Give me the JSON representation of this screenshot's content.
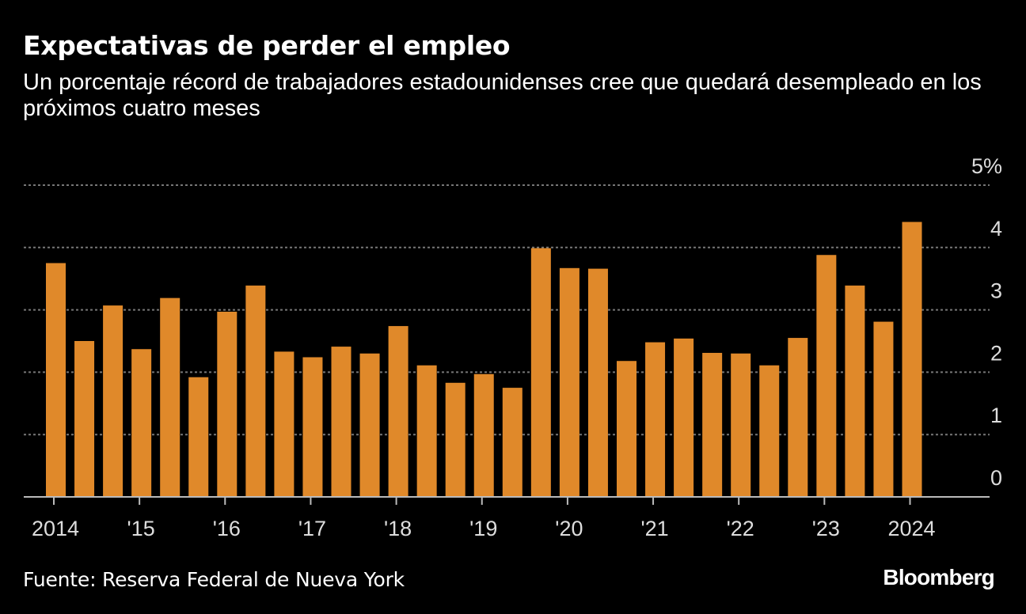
{
  "header": {
    "title": "Expectativas de perder el empleo",
    "subtitle": "Un porcentaje récord de trabajadores estadounidenses cree que quedará desempleado en los próximos cuatro meses"
  },
  "footer": {
    "source": "Fuente: Reserva Federal de Nueva York",
    "brand": "Bloomberg"
  },
  "colors": {
    "bar": "#E0892A",
    "background": "#000000",
    "grid": "#777777",
    "axis": "#bbbbbb"
  },
  "chart_data": {
    "type": "bar",
    "title": "Expectativas de perder el empleo",
    "ylabel": "%",
    "ylim": [
      0,
      5
    ],
    "yticks": [
      0,
      1,
      2,
      3,
      4,
      5
    ],
    "ytick_labels": [
      "0",
      "1",
      "2",
      "3",
      "4",
      "5%"
    ],
    "grid": true,
    "categories": [
      "2014-04",
      "2014-08",
      "2014-12",
      "2015-04",
      "2015-08",
      "2015-12",
      "2016-04",
      "2016-08",
      "2016-12",
      "2017-04",
      "2017-08",
      "2017-12",
      "2018-04",
      "2018-08",
      "2018-12",
      "2019-04",
      "2019-08",
      "2019-12",
      "2020-04",
      "2020-08",
      "2020-12",
      "2021-04",
      "2021-08",
      "2021-12",
      "2022-04",
      "2022-08",
      "2022-12",
      "2023-04",
      "2023-08",
      "2023-12",
      "2024-04"
    ],
    "values": [
      3.75,
      2.5,
      3.07,
      2.37,
      3.19,
      1.92,
      2.97,
      3.39,
      2.33,
      2.24,
      2.41,
      2.3,
      2.74,
      2.11,
      1.83,
      1.97,
      1.75,
      3.99,
      3.67,
      3.66,
      2.18,
      2.48,
      2.54,
      2.31,
      2.3,
      2.11,
      2.55,
      3.88,
      3.39,
      2.81,
      4.41
    ],
    "xtick_labels": [
      "2014",
      "'15",
      "'16",
      "'17",
      "'18",
      "'19",
      "'20",
      "'21",
      "'22",
      "'23",
      "2024"
    ]
  }
}
